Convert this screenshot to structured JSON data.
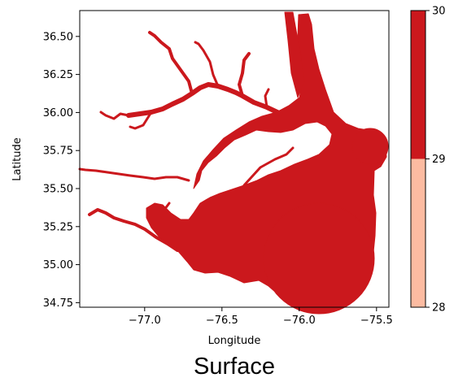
{
  "chart_data": {
    "type": "heatmap",
    "title": "Surface",
    "xlabel": "Longitude",
    "ylabel": "Latitude",
    "xlim": [
      -77.42,
      -75.42
    ],
    "ylim": [
      34.72,
      36.67
    ],
    "xticks": [
      -77.0,
      -76.5,
      -76.0,
      -75.5
    ],
    "xtick_labels": [
      "−77.0",
      "−76.5",
      "−76.0",
      "−75.5"
    ],
    "yticks": [
      34.75,
      35.0,
      35.25,
      35.5,
      35.75,
      36.0,
      36.25,
      36.5
    ],
    "ytick_labels": [
      "34.75",
      "35.00",
      "35.25",
      "35.50",
      "35.75",
      "36.00",
      "36.25",
      "36.50"
    ],
    "colorbar": {
      "range": [
        28,
        30
      ],
      "ticks": [
        28,
        29,
        30
      ],
      "tick_labels": [
        "28",
        "29",
        "30"
      ],
      "bins": [
        {
          "from": 28,
          "to": 29,
          "color": "#fcbba1"
        },
        {
          "from": 29,
          "to": 30,
          "color": "#cb181d"
        }
      ]
    },
    "fill_value_bin": "29-30",
    "fill_color": "#cb181d",
    "background": "white",
    "grid": false,
    "legend": "colorbar-right"
  }
}
